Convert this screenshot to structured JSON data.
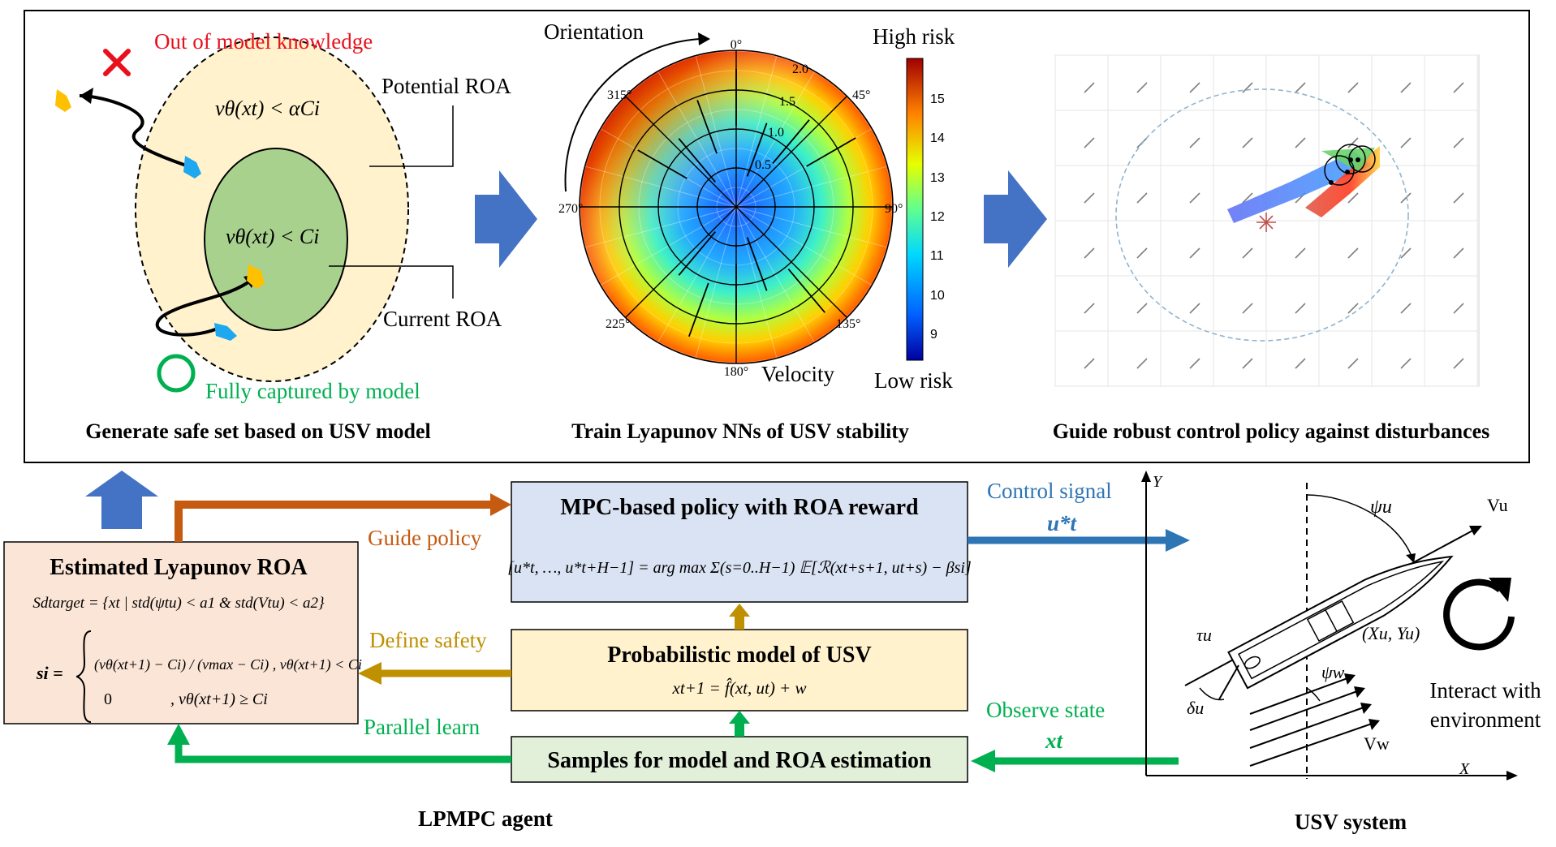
{
  "panel1": {
    "out_of_model": "Out of model knowledge",
    "potential_roa": "Potential ROA",
    "outer_ineq": "νθ(xt) < αCi",
    "inner_ineq": "νθ(xt) < Ci",
    "current_roa": "Current ROA",
    "fully_captured": "Fully captured by model",
    "caption": "Generate safe set based on USV model"
  },
  "panel2": {
    "orientation": "Orientation",
    "high_risk": "High risk",
    "low_risk": "Low risk",
    "velocity": "Velocity",
    "caption": "Train Lyapunov NNs of USV stability",
    "angle_labels": [
      "0°",
      "45°",
      "90°",
      "135°",
      "180°",
      "225°",
      "270°",
      "315°"
    ],
    "radial_labels": [
      "0.5",
      "1.0",
      "1.5",
      "2.0"
    ],
    "colorbar_ticks": [
      "15",
      "14",
      "13",
      "12",
      "11",
      "10",
      "9"
    ]
  },
  "panel3": {
    "caption": "Guide robust control policy against disturbances"
  },
  "mpc": {
    "title": "MPC-based policy with ROA reward",
    "formula": "[u*t, …, u*t+H−1] = arg max Σ(s=0..H−1) 𝔼[ℛ(xt+s+1, ut+s) − βsi]"
  },
  "prob_model": {
    "title": "Probabilistic model of USV",
    "formula": "xt+1 = f̂(xt, ut) + w"
  },
  "samples": {
    "title": "Samples for model and ROA estimation"
  },
  "roa_box": {
    "title": "Estimated Lyapunov ROA",
    "set_def": "Sdtarget = {xt | std(ψtu) < a1 & std(Vtu) < a2}",
    "si_label": "si =",
    "case1": "(νθ(xt+1) − Ci) / (νmax − Ci) , νθ(xt+1) < Ci",
    "case2_val": "0",
    "case2_cond": ", νθ(xt+1) ≥ Ci"
  },
  "arrows": {
    "guide_policy": "Guide policy",
    "define_safety": "Define safety",
    "parallel_learn": "Parallel learn",
    "control_signal": "Control signal",
    "control_var": "u*t",
    "observe_state": "Observe state",
    "observe_var": "xt"
  },
  "usv": {
    "y_axis": "Y",
    "x_axis": "X",
    "psi_u": "ψu",
    "v_u": "Vu",
    "tau_u": "τu",
    "pos": "(Xu, Yu)",
    "psi_w": "ψw",
    "delta_u": "δu",
    "v_w": "Vw",
    "interact": "Interact with",
    "environment": "environment"
  },
  "labels": {
    "agent": "LPMPC agent",
    "system": "USV system"
  },
  "colors": {
    "orange_arrow": "#c55a11",
    "gold_arrow": "#bf9000",
    "green_arrow": "#00b050",
    "blue_arrow": "#2e75b6",
    "big_arrow": "#4472c4",
    "mpc_fill": "#dae3f3",
    "prob_fill": "#fff2cc",
    "samples_fill": "#e2f0d9",
    "roa_fill": "#fbe5d6",
    "outer_roa": "#fff2cc",
    "inner_roa": "#a9d18e"
  }
}
